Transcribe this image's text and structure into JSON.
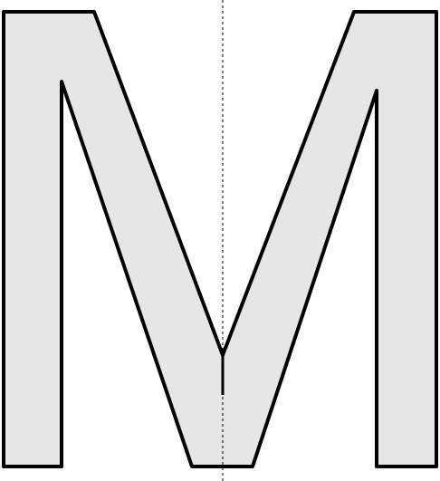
{
  "figure": {
    "subject": "M",
    "fill_color": "#e6e6e6",
    "stroke_color": "#000000",
    "background_color": "#ffffff",
    "symmetry_axis": {
      "orientation": "vertical",
      "line_style": "dashed",
      "color": "#000000"
    }
  }
}
